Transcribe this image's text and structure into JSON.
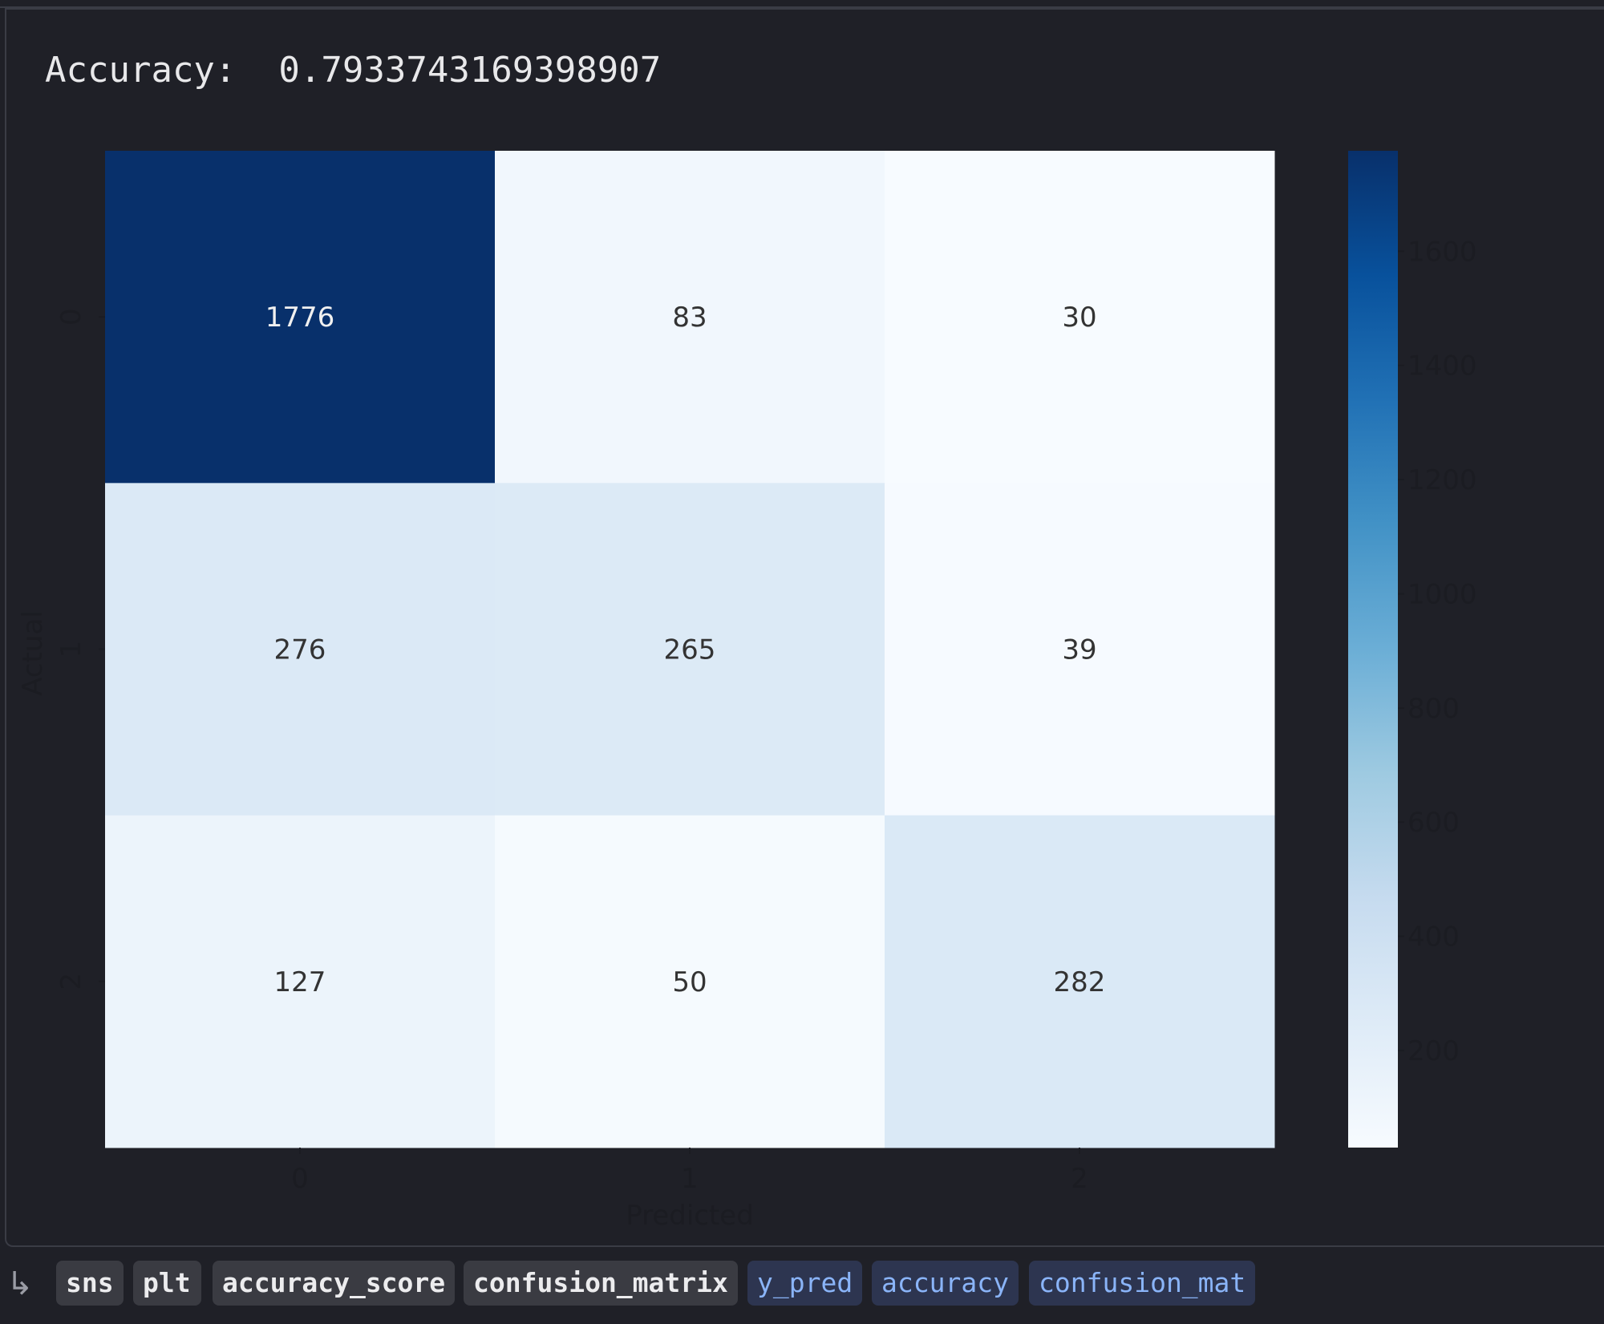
{
  "output": {
    "stdout_label": "Accuracy:",
    "stdout_value": "0.7933743169398907"
  },
  "chart_data": {
    "type": "heatmap",
    "title": "",
    "xlabel": "Predicted",
    "ylabel": "Actual",
    "x_categories": [
      "0",
      "1",
      "2"
    ],
    "y_categories": [
      "0",
      "1",
      "2"
    ],
    "values": [
      [
        1776,
        83,
        30
      ],
      [
        276,
        265,
        39
      ],
      [
        127,
        50,
        282
      ]
    ],
    "colormap": "Blues",
    "colorbar": {
      "range": [
        30,
        1776
      ],
      "ticks": [
        200,
        400,
        600,
        800,
        1000,
        1200,
        1400,
        1600
      ]
    },
    "annotations": true,
    "grid": false
  },
  "variables": {
    "modules": [
      "sns",
      "plt",
      "accuracy_score",
      "confusion_matrix"
    ],
    "values": [
      "y_pred",
      "accuracy",
      "confusion_mat"
    ]
  },
  "colors": {
    "background": "#1f2027",
    "chip": "#3a3b42",
    "chip_var_text": "#8ab4f8"
  }
}
